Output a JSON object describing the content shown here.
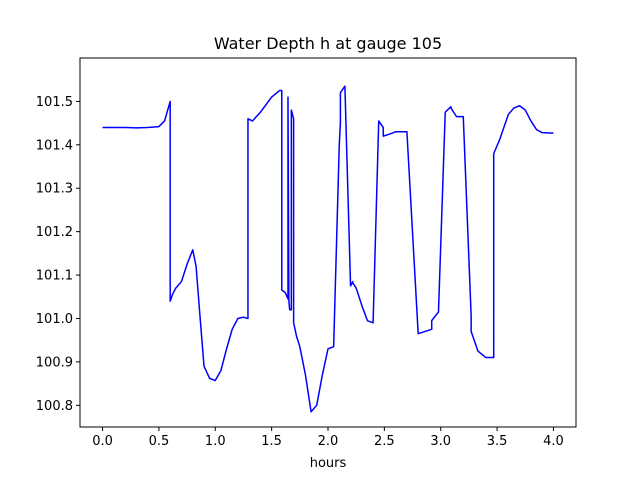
{
  "chart_data": {
    "type": "line",
    "title": "Water Depth h at gauge 105",
    "xlabel": "hours",
    "ylabel": "",
    "xlim": [
      -0.2,
      4.2
    ],
    "ylim": [
      100.75,
      101.6
    ],
    "xticks": [
      0.0,
      0.5,
      1.0,
      1.5,
      2.0,
      2.5,
      3.0,
      3.5,
      4.0
    ],
    "xtick_labels": [
      "0.0",
      "0.5",
      "1.0",
      "1.5",
      "2.0",
      "2.5",
      "3.0",
      "3.5",
      "4.0"
    ],
    "yticks": [
      100.8,
      100.9,
      101.0,
      101.1,
      101.2,
      101.3,
      101.4,
      101.5
    ],
    "ytick_labels": [
      "100.8",
      "100.9",
      "101.0",
      "101.1",
      "101.2",
      "101.3",
      "101.4",
      "101.5"
    ],
    "grid": false,
    "series": [
      {
        "color": "#0000ff",
        "x": [
          0.0,
          0.1,
          0.2,
          0.3,
          0.4,
          0.5,
          0.55,
          0.6,
          0.6,
          0.62,
          0.65,
          0.7,
          0.75,
          0.8,
          0.83,
          0.86,
          0.9,
          0.95,
          1.0,
          1.05,
          1.1,
          1.15,
          1.2,
          1.25,
          1.29,
          1.29,
          1.33,
          1.4,
          1.5,
          1.57,
          1.59,
          1.59,
          1.62,
          1.645,
          1.645,
          1.653,
          1.66,
          1.675,
          1.675,
          1.695,
          1.695,
          1.72,
          1.75,
          1.8,
          1.85,
          1.9,
          1.95,
          2.0,
          2.05,
          2.1,
          2.11,
          2.11,
          2.15,
          2.2,
          2.22,
          2.22,
          2.25,
          2.3,
          2.35,
          2.4,
          2.45,
          2.49,
          2.49,
          2.55,
          2.6,
          2.7,
          2.8,
          2.92,
          2.92,
          2.98,
          3.04,
          3.09,
          3.09,
          3.14,
          3.2,
          3.27,
          3.27,
          3.33,
          3.4,
          3.47,
          3.47,
          3.52,
          3.6,
          3.65,
          3.7,
          3.75,
          3.8,
          3.85,
          3.9,
          4.0
        ],
        "y": [
          101.44,
          101.44,
          101.44,
          101.439,
          101.44,
          101.442,
          101.455,
          101.5,
          101.04,
          101.055,
          101.07,
          101.085,
          101.125,
          101.158,
          101.12,
          101.02,
          100.89,
          100.862,
          100.857,
          100.88,
          100.93,
          100.975,
          101.0,
          101.003,
          101.0,
          101.46,
          101.455,
          101.475,
          101.51,
          101.525,
          101.525,
          101.065,
          101.06,
          101.045,
          101.51,
          101.04,
          101.02,
          101.02,
          101.48,
          101.46,
          100.99,
          100.96,
          100.935,
          100.87,
          100.785,
          100.8,
          100.87,
          100.93,
          100.935,
          101.4,
          101.45,
          101.52,
          101.535,
          101.075,
          101.085,
          101.082,
          101.07,
          101.03,
          100.995,
          100.99,
          101.455,
          101.44,
          101.42,
          101.425,
          101.43,
          101.43,
          100.965,
          100.975,
          100.995,
          101.015,
          101.475,
          101.488,
          101.485,
          101.465,
          101.465,
          101.005,
          100.97,
          100.925,
          100.91,
          100.91,
          101.38,
          101.41,
          101.47,
          101.485,
          101.49,
          101.48,
          101.455,
          101.435,
          101.428,
          101.427
        ]
      }
    ]
  }
}
